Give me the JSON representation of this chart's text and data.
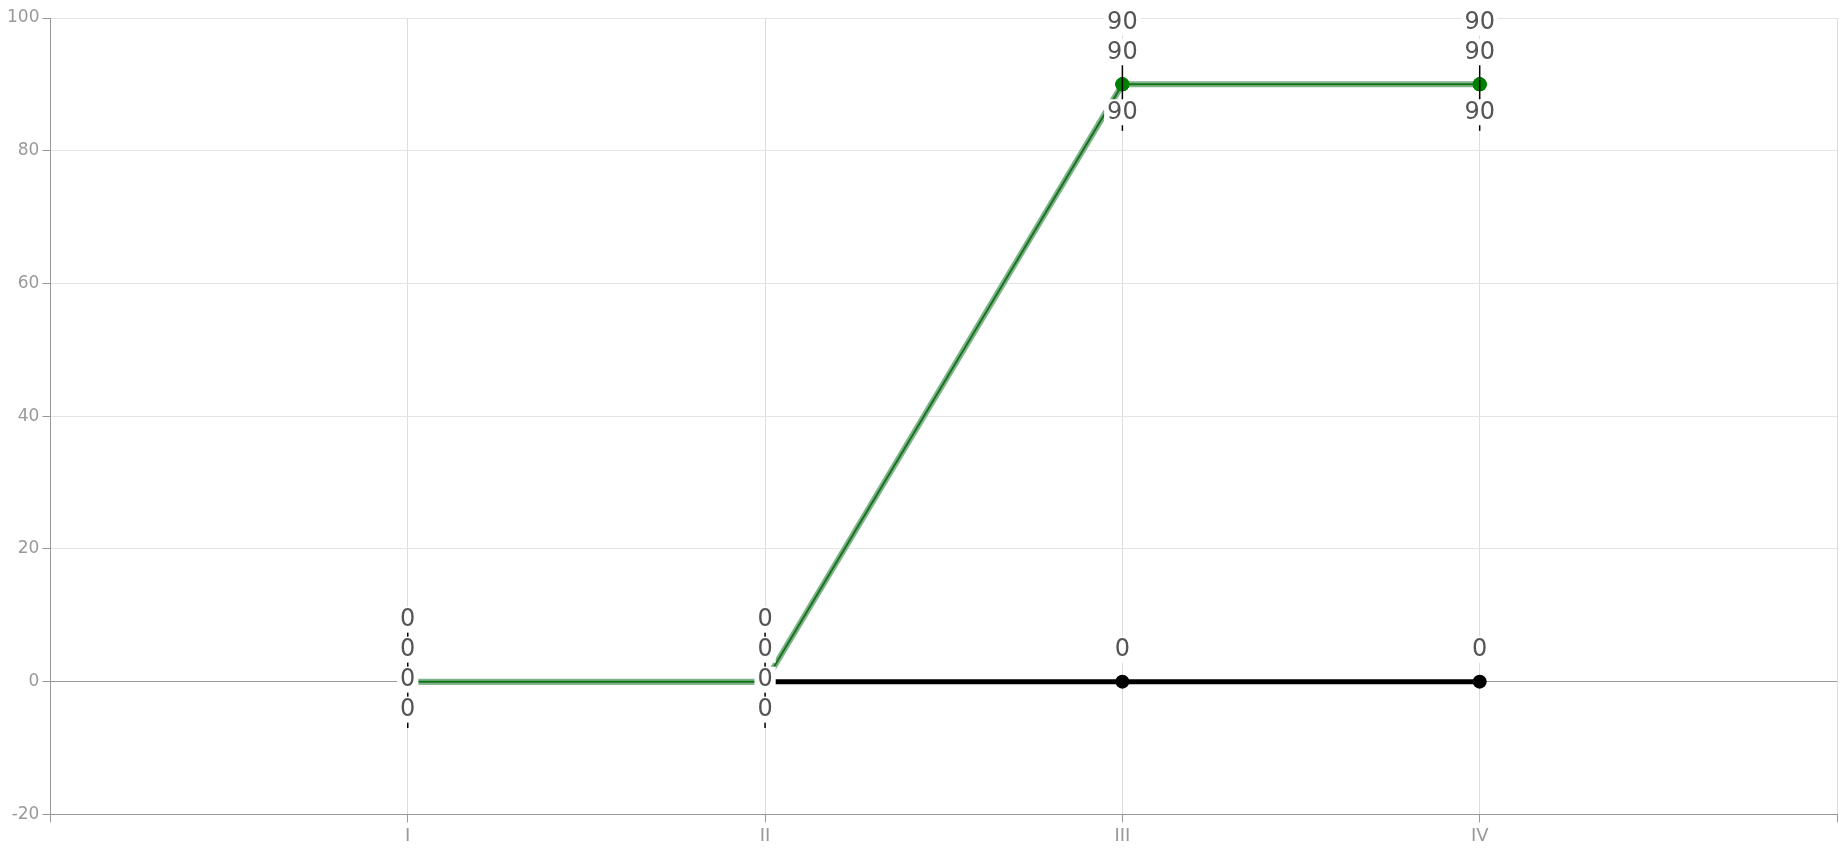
{
  "chart_data": {
    "type": "line",
    "categories": [
      null,
      "I",
      "II",
      "III",
      "IV",
      null
    ],
    "ylim": [
      -20,
      100
    ],
    "yticks": [
      -20,
      0,
      20,
      40,
      60,
      80,
      100
    ],
    "grid": true,
    "legend": false,
    "marker": "circle",
    "data_labels": true,
    "series": [
      {
        "color": "#000000",
        "values": [
          null,
          0,
          0,
          0,
          0,
          null
        ]
      },
      {
        "color": "#7fb38a",
        "values": [
          null,
          0,
          0,
          90,
          90,
          null
        ],
        "errors": [
          null,
          [
            -7,
            10
          ],
          [
            -7,
            10
          ],
          [
            83,
            95
          ],
          [
            83,
            95
          ],
          null
        ]
      },
      {
        "color": "#2e6b3a",
        "values": [
          null,
          0,
          0,
          90,
          90,
          null
        ]
      },
      {
        "color": "#008000",
        "values": [
          null,
          0,
          0,
          90,
          90,
          null
        ]
      }
    ]
  }
}
